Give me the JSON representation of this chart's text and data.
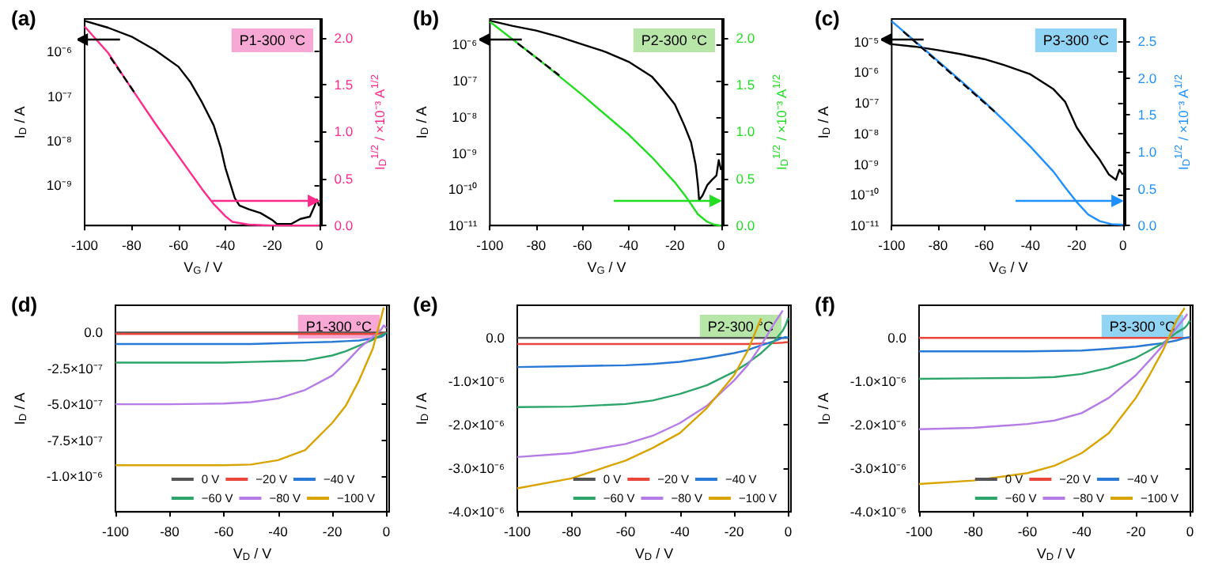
{
  "chart_data": [
    {
      "type": "line",
      "title": "(a)",
      "xlabel": "V$_{G}$ / V",
      "ylabel": "I$_{D}$ / A",
      "y2label": "I$_{D}$$^{1/2}$ / ×10⁻³ A$^{1/2}$",
      "annotations": [
        "P1-300 °C"
      ],
      "log": "y",
      "xlim": [
        -100,
        1
      ],
      "xticks": [
        -100,
        -80,
        -60,
        -40,
        -20,
        0
      ],
      "ylim": [
        1.2e-10,
        5.5e-06
      ],
      "yticks": [
        {
          "value": 1e-09,
          "label": "10⁻⁹"
        },
        {
          "value": 1e-08,
          "label": "10⁻⁸"
        },
        {
          "value": 1e-07,
          "label": "10⁻⁷"
        },
        {
          "value": 1e-06,
          "label": "10⁻⁶"
        }
      ],
      "y2lim": [
        0,
        2.2
      ],
      "y2ticks": [
        {
          "value": 0,
          "label": "0.0"
        },
        {
          "value": 0.5,
          "label": "0.5"
        },
        {
          "value": 1,
          "label": "1.0"
        },
        {
          "value": 1.5,
          "label": "1.5"
        },
        {
          "value": 2,
          "label": "2.0"
        }
      ],
      "series": [
        {
          "color": "#000000",
          "x": [
            -100,
            -90,
            -80,
            -70,
            -60,
            -55,
            -50,
            -45,
            -42,
            -40,
            -38,
            -36,
            -34,
            -30,
            -25,
            -20,
            -18,
            -12,
            -8,
            -4,
            -2,
            -1,
            0
          ],
          "values": [
            5e-06,
            3.5e-06,
            2.2e-06,
            1.1e-06,
            4.6e-07,
            2.1e-07,
            7.3e-08,
            2.2e-08,
            6.9e-09,
            2.4e-09,
            1.1e-09,
            5e-10,
            3.4e-10,
            2.8e-10,
            2.3e-10,
            1.6e-10,
            1.3e-10,
            1.3e-10,
            1.7e-10,
            1.9e-10,
            3.3e-10,
            4.6e-10,
            3.3e-10
          ]
        },
        {
          "color": "#ff2a8a",
          "axis": "y2",
          "x": [
            -100,
            -90,
            -80,
            -70,
            -60,
            -50,
            -45,
            -40,
            -37,
            -30,
            -20,
            0
          ],
          "values": [
            2.12,
            1.84,
            1.46,
            1.09,
            0.74,
            0.39,
            0.23,
            0.1,
            0.04,
            0.01,
            0,
            0
          ]
        },
        {
          "color": "#000000",
          "axis": "y2",
          "line_style": "dashed",
          "x": [
            -89,
            -78
          ],
          "values": [
            1.79,
            1.39
          ]
        }
      ]
    },
    {
      "type": "line",
      "title": "(b)",
      "xlabel": "V$_{G}$ / V",
      "ylabel": "I$_{D}$ / A",
      "y2label": "I$_{D}$$^{1/2}$ / ×10⁻³ A$^{1/2}$",
      "annotations": [
        "P2-300 °C"
      ],
      "log": "y",
      "xlim": [
        -100,
        1
      ],
      "xticks": [
        -100,
        -80,
        -60,
        -40,
        -20,
        0
      ],
      "ylim": [
        1e-11,
        5e-06
      ],
      "yticks": [
        {
          "value": 1e-11,
          "label": "10⁻¹¹"
        },
        {
          "value": 1e-10,
          "label": "10⁻¹⁰"
        },
        {
          "value": 1e-09,
          "label": "10⁻⁹"
        },
        {
          "value": 1e-08,
          "label": "10⁻⁸"
        },
        {
          "value": 1e-07,
          "label": "10⁻⁷"
        },
        {
          "value": 1e-06,
          "label": "10⁻⁶"
        }
      ],
      "y2lim": [
        0,
        2.2
      ],
      "y2ticks": [
        {
          "value": 0,
          "label": "0.0"
        },
        {
          "value": 0.5,
          "label": "0.5"
        },
        {
          "value": 1,
          "label": "1.0"
        },
        {
          "value": 1.5,
          "label": "1.5"
        },
        {
          "value": 2,
          "label": "2.0"
        }
      ],
      "series": [
        {
          "color": "#000000",
          "x": [
            -100,
            -90,
            -80,
            -70,
            -60,
            -50,
            -40,
            -30,
            -25,
            -20,
            -16,
            -13,
            -11,
            -10,
            -9.5,
            -8,
            -6,
            -4,
            -2,
            -1,
            0
          ],
          "values": [
            4.5e-06,
            3.2e-06,
            2.4e-06,
            1.6e-06,
            1e-06,
            6.2e-07,
            3.3e-07,
            1.3e-07,
            5.6e-08,
            2.2e-08,
            6e-09,
            2e-09,
            4.7e-10,
            1.3e-10,
            5e-11,
            6.8e-11,
            1.3e-10,
            1.8e-10,
            2.4e-10,
            6.4e-10,
            3.4e-10
          ]
        },
        {
          "color": "#22dd22",
          "axis": "y2",
          "x": [
            -100,
            -80,
            -60,
            -40,
            -30,
            -20,
            -15,
            -10,
            -6,
            -3,
            0
          ],
          "values": [
            2.17,
            1.79,
            1.39,
            0.97,
            0.73,
            0.46,
            0.3,
            0.12,
            0.04,
            0.01,
            0
          ]
        },
        {
          "color": "#000000",
          "axis": "y2",
          "line_style": "dashed",
          "x": [
            -88,
            -70
          ],
          "values": [
            1.94,
            1.6
          ]
        }
      ]
    },
    {
      "type": "line",
      "title": "(c)",
      "xlabel": "V$_{G}$ / V",
      "ylabel": "I$_{D}$ / A",
      "y2label": "I$_{D}$$^{1/2}$ / ×10⁻³ A$^{1/2}$",
      "annotations": [
        "P3-300 °C"
      ],
      "log": "y",
      "xlim": [
        -100,
        1
      ],
      "xticks": [
        -100,
        -80,
        -60,
        -40,
        -20,
        0
      ],
      "ylim": [
        1e-11,
        5.5e-05
      ],
      "yticks": [
        {
          "value": 1e-11,
          "label": "10⁻¹¹"
        },
        {
          "value": 1e-10,
          "label": "10⁻¹⁰"
        },
        {
          "value": 1e-09,
          "label": "10⁻⁹"
        },
        {
          "value": 1e-08,
          "label": "10⁻⁸"
        },
        {
          "value": 1e-07,
          "label": "10⁻⁷"
        },
        {
          "value": 1e-06,
          "label": "10⁻⁶"
        },
        {
          "value": 1e-05,
          "label": "10⁻⁵"
        }
      ],
      "y2lim": [
        0,
        2.8
      ],
      "y2ticks": [
        {
          "value": 0,
          "label": "0.0"
        },
        {
          "value": 0.5,
          "label": "0.5"
        },
        {
          "value": 1,
          "label": "1.0"
        },
        {
          "value": 1.5,
          "label": "1.5"
        },
        {
          "value": 2,
          "label": "2.0"
        },
        {
          "value": 2.5,
          "label": "2.5"
        }
      ],
      "series": [
        {
          "color": "#000000",
          "x": [
            -100,
            -90,
            -80,
            -70,
            -60,
            -50,
            -40,
            -30,
            -25,
            -20,
            -15,
            -10,
            -6,
            -3,
            -1.5,
            0
          ],
          "values": [
            8.3e-06,
            6.9e-06,
            5.3e-06,
            3.9e-06,
            2.7e-06,
            1.6e-06,
            8.6e-07,
            2.8e-07,
            1.1e-07,
            1.6e-08,
            4.4e-09,
            1.4e-09,
            4.6e-10,
            3.1e-10,
            6.6e-10,
            4.6e-10
          ]
        },
        {
          "color": "#1e90ff",
          "axis": "y2",
          "x": [
            -100,
            -90,
            -80,
            -70,
            -60,
            -50,
            -40,
            -30,
            -25,
            -20,
            -15,
            -10,
            -5,
            0
          ],
          "values": [
            2.77,
            2.5,
            2.23,
            1.96,
            1.68,
            1.38,
            1.07,
            0.73,
            0.52,
            0.32,
            0.15,
            0.06,
            0.02,
            0.01
          ]
        },
        {
          "color": "#000000",
          "axis": "y2",
          "line_style": "dashed",
          "x": [
            -95,
            -55
          ],
          "values": [
            2.63,
            1.53
          ]
        }
      ]
    },
    {
      "type": "line",
      "title": "(d)",
      "xlabel": "V$_{D}$ / V",
      "ylabel": "I$_{D}$ / A",
      "annotations": [
        "P1-300 °C"
      ],
      "legend": "bottom right",
      "xlim": [
        -100,
        1
      ],
      "xticks": [
        -100,
        -80,
        -60,
        -40,
        -20,
        0
      ],
      "ylim": [
        -1.25e-06,
        1.9e-07
      ],
      "yticks": [
        {
          "value": -1e-06,
          "label": "-1.0×10⁻⁶"
        },
        {
          "value": -7.5e-07,
          "label": "-7.5×10⁻⁷"
        },
        {
          "value": -5e-07,
          "label": "-5.0×10⁻⁷"
        },
        {
          "value": -2.5e-07,
          "label": "-2.5×10⁻⁷"
        },
        {
          "value": 0,
          "label": "0.0"
        }
      ],
      "x": [
        -100,
        -80,
        -60,
        -50,
        -40,
        -30,
        -20,
        -15,
        -10,
        -5,
        -2,
        -1,
        0
      ],
      "series": [
        {
          "name": "0 V",
          "color": "#555555",
          "values": [
            0,
            0,
            0,
            0,
            0,
            0,
            0,
            0,
            0,
            0,
            0,
            0,
            0
          ]
        },
        {
          "name": "−20 V",
          "color": "#e8463a",
          "values": [
            -1e-08,
            -1e-08,
            -1e-08,
            -1e-08,
            -1e-08,
            -1e-08,
            -1e-08,
            -1e-08,
            -1e-08,
            -1e-08,
            -8e-09,
            -5e-09,
            0
          ]
        },
        {
          "name": "−40 V",
          "color": "#2878d6",
          "values": [
            -8e-08,
            -8e-08,
            -8e-08,
            -8e-08,
            -7.5e-08,
            -7e-08,
            -6.5e-08,
            -6e-08,
            -5.5e-08,
            -4e-08,
            -3e-08,
            -2e-08,
            0
          ]
        },
        {
          "name": "−60 V",
          "color": "#2ca56a",
          "values": [
            -2.1e-07,
            -2.1e-07,
            -2.1e-07,
            -2.05e-07,
            -2e-07,
            -1.95e-07,
            -1.6e-07,
            -1.3e-07,
            -9e-08,
            -5e-08,
            -2e-08,
            -1e-08,
            0
          ]
        },
        {
          "name": "−80 V",
          "color": "#b57be6",
          "values": [
            -5e-07,
            -5e-07,
            -4.95e-07,
            -4.85e-07,
            -4.6e-07,
            -4e-07,
            -3e-07,
            -2.1e-07,
            -1.1e-07,
            -3e-08,
            2e-08,
            5e-08,
            3e-08
          ]
        },
        {
          "name": "−100 V",
          "color": "#d9a400",
          "values": [
            -9.25e-07,
            -9.25e-07,
            -9.25e-07,
            -9.2e-07,
            -8.9e-07,
            -8.2e-07,
            -6.3e-07,
            -5.1e-07,
            -3.3e-07,
            -1.1e-07,
            1e-07,
            1.75e-07,
            null
          ]
        }
      ]
    },
    {
      "type": "line",
      "title": "(e)",
      "xlabel": "V$_{D}$ / V",
      "ylabel": "I$_{D}$ / A",
      "annotations": [
        "P2-300 °C"
      ],
      "legend": "bottom right",
      "xlim": [
        -100,
        1
      ],
      "xticks": [
        -100,
        -80,
        -60,
        -40,
        -20,
        0
      ],
      "ylim": [
        -4e-06,
        7.5e-07
      ],
      "yticks": [
        {
          "value": -4e-06,
          "label": "-4.0×10⁻⁶"
        },
        {
          "value": -3e-06,
          "label": "-3.0×10⁻⁶"
        },
        {
          "value": -2e-06,
          "label": "-2.0×10⁻⁶"
        },
        {
          "value": -1e-06,
          "label": "-1.0×10⁻⁶"
        },
        {
          "value": 0,
          "label": "0.0"
        }
      ],
      "x": [
        -100,
        -80,
        -60,
        -50,
        -40,
        -30,
        -20,
        -15,
        -10,
        -5,
        -2,
        -1,
        0
      ],
      "series": [
        {
          "name": "0 V",
          "color": "#555555",
          "values": [
            0,
            0,
            0,
            0,
            0,
            0,
            0,
            0,
            0,
            0,
            0,
            0,
            0
          ]
        },
        {
          "name": "−20 V",
          "color": "#e8463a",
          "values": [
            -1.4e-07,
            -1.4e-07,
            -1.4e-07,
            -1.4e-07,
            -1.4e-07,
            -1.4e-07,
            -1.4e-07,
            -1.4e-07,
            -1.3e-07,
            -1.2e-07,
            -1.1e-07,
            -1e-07,
            -1e-07
          ]
        },
        {
          "name": "−40 V",
          "color": "#2878d6",
          "values": [
            -6.7e-07,
            -6.5e-07,
            -6.3e-07,
            -6e-07,
            -5.5e-07,
            -4.6e-07,
            -3.5e-07,
            -2.8e-07,
            -1.7e-07,
            -7e-08,
            0,
            2e-08,
            0
          ]
        },
        {
          "name": "−60 V",
          "color": "#2ca56a",
          "values": [
            -1.59e-06,
            -1.58e-06,
            -1.52e-06,
            -1.44e-06,
            -1.29e-06,
            -1.09e-06,
            -7.8e-07,
            -5.8e-07,
            -3.5e-07,
            -6e-08,
            1.7e-07,
            2.9e-07,
            4.6e-07
          ]
        },
        {
          "name": "−80 V",
          "color": "#b57be6",
          "values": [
            -2.74e-06,
            -2.65e-06,
            -2.44e-06,
            -2.25e-06,
            -1.96e-06,
            -1.56e-06,
            -9.8e-07,
            -6.3e-07,
            -1.7e-07,
            3.5e-07,
            6.3e-07,
            null,
            null
          ]
        },
        {
          "name": "−100 V",
          "color": "#d9a400",
          "x": [
            -100,
            -80,
            -60,
            -50,
            -40,
            -30,
            -20,
            -15,
            -10
          ],
          "values": [
            -3.46e-06,
            -3.23e-06,
            -2.82e-06,
            -2.53e-06,
            -2.19e-06,
            -1.61e-06,
            -8.6e-07,
            -3e-07,
            4.5e-07
          ]
        }
      ]
    },
    {
      "type": "line",
      "title": "(f)",
      "xlabel": "V$_{D}$ / V",
      "ylabel": "I$_{D}$ / A",
      "annotations": [
        "P3-300 °C"
      ],
      "legend": "bottom right",
      "xlim": [
        -100,
        1
      ],
      "xticks": [
        -100,
        -80,
        -60,
        -40,
        -20,
        0
      ],
      "ylim": [
        -4e-06,
        7.5e-07
      ],
      "yticks": [
        {
          "value": -4e-06,
          "label": "-4.0×10⁻⁶"
        },
        {
          "value": -3e-06,
          "label": "-3.0×10⁻⁶"
        },
        {
          "value": -2e-06,
          "label": "-2.0×10⁻⁶"
        },
        {
          "value": -1e-06,
          "label": "-1.0×10⁻⁶"
        },
        {
          "value": 0,
          "label": "0.0"
        }
      ],
      "x": [
        -100,
        -80,
        -60,
        -50,
        -40,
        -30,
        -20,
        -15,
        -10,
        -5,
        -2,
        -1,
        0
      ],
      "series": [
        {
          "name": "0 V",
          "color": "#555555",
          "values": [
            null,
            null,
            null,
            null,
            null,
            null,
            null,
            null,
            null,
            null,
            null,
            null,
            null
          ]
        },
        {
          "name": "−20 V",
          "color": "#e8463a",
          "values": [
            0,
            0,
            0,
            0,
            0,
            0,
            0,
            0,
            0,
            0,
            0,
            0,
            0
          ]
        },
        {
          "name": "−40 V",
          "color": "#2878d6",
          "values": [
            -3.1e-07,
            -3.1e-07,
            -3.1e-07,
            -3e-07,
            -2.9e-07,
            -2.5e-07,
            -2e-07,
            -1.6e-07,
            -1.2e-07,
            -6e-08,
            0,
            1e-08,
            2e-08
          ]
        },
        {
          "name": "−60 V",
          "color": "#2ca56a",
          "values": [
            -9.4e-07,
            -9.3e-07,
            -9.2e-07,
            -9e-07,
            -8.3e-07,
            -6.9e-07,
            -4.6e-07,
            -2.9e-07,
            -1.2e-07,
            1.2e-07,
            2.3e-07,
            3e-07,
            4e-07
          ]
        },
        {
          "name": "−80 V",
          "color": "#b57be6",
          "values": [
            -2.1e-06,
            -2.07e-06,
            -1.98e-06,
            -1.9e-06,
            -1.73e-06,
            -1.38e-06,
            -8.6e-07,
            -5.2e-07,
            -1.7e-07,
            2.3e-07,
            4.6e-07,
            5.5e-07,
            null
          ]
        },
        {
          "name": "−100 V",
          "color": "#d9a400",
          "values": [
            -3.36e-06,
            -3.28e-06,
            -3.11e-06,
            -2.94e-06,
            -2.65e-06,
            -2.19e-06,
            -1.38e-06,
            -8.6e-07,
            -2.9e-07,
            4e-07,
            6.9e-07,
            null,
            null
          ]
        }
      ]
    }
  ]
}
